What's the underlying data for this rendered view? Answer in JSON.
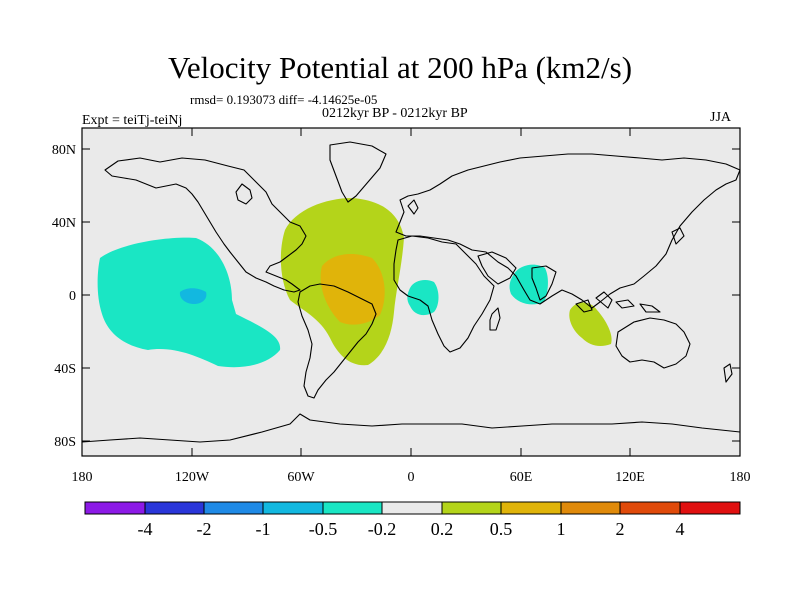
{
  "title": "Velocity Potential at 200 hPa (km2/s)",
  "stats": "rmsd= 0.193073 diff= -4.14625e-05",
  "expt": "Expt = teiTj-teiNj",
  "period": "0212kyr BP - 0212kyr BP",
  "season": "JJA",
  "map": {
    "background": "#eaeaea",
    "lat_ticks": [
      "80N",
      "40N",
      "0",
      "40S",
      "80S"
    ],
    "lon_ticks": [
      "180",
      "120W",
      "60W",
      "0",
      "60E",
      "120E",
      "180"
    ]
  },
  "colorbar": {
    "colors": [
      "#8c1ae6",
      "#2a36d9",
      "#1f8ae6",
      "#12b8e0",
      "#1ae6c4",
      "#eaeaea",
      "#b4d41a",
      "#e0b40a",
      "#e08a0a",
      "#e04a0a",
      "#e01010"
    ],
    "labels": [
      "-4",
      "-2",
      "-1",
      "-0.5",
      "-0.2",
      "0.2",
      "0.5",
      "1",
      "2",
      "4"
    ]
  }
}
